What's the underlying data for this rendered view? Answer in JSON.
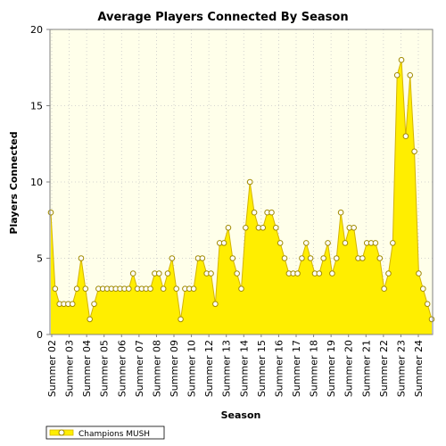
{
  "chart_data": {
    "type": "area",
    "title": "Average Players Connected By Season",
    "xlabel": "Season",
    "ylabel": "Players Connected",
    "ylim": [
      0,
      20
    ],
    "yticks": [
      0,
      5,
      10,
      15,
      20
    ],
    "grid": true,
    "legend_position": "bottom-left",
    "x_tick_labels": [
      "Summer 02",
      "Summer 03",
      "Summer 04",
      "Summer 05",
      "Summer 06",
      "Summer 07",
      "Summer 08",
      "Summer 09",
      "Summer 10",
      "Summer 12",
      "Summer 13",
      "Summer 14",
      "Summer 15",
      "Summer 16",
      "Summer 17",
      "Summer 18",
      "Summer 19",
      "Summer 20",
      "Summer 21",
      "Summer 22",
      "Summer 23",
      "Summer 24"
    ],
    "series": [
      {
        "name": "Champions MUSH",
        "color": "#ffee00",
        "values": [
          8,
          3,
          2,
          2,
          2,
          2,
          3,
          5,
          3,
          1,
          2,
          3,
          3,
          3,
          3,
          3,
          3,
          3,
          3,
          4,
          3,
          3,
          3,
          3,
          4,
          4,
          3,
          4,
          5,
          3,
          1,
          3,
          3,
          3,
          5,
          5,
          4,
          4,
          2,
          6,
          6,
          7,
          5,
          4,
          3,
          7,
          10,
          8,
          7,
          7,
          8,
          8,
          7,
          6,
          5,
          4,
          4,
          4,
          5,
          6,
          5,
          4,
          4,
          5,
          6,
          4,
          5,
          8,
          6,
          7,
          7,
          5,
          5,
          6,
          6,
          6,
          5,
          3,
          4,
          6,
          17,
          18,
          13,
          17,
          12,
          4,
          3,
          2,
          1
        ]
      }
    ]
  },
  "colors": {
    "plot_bg": "#ffffea",
    "area_fill": "#ffee00",
    "area_stroke": "#d4b400",
    "marker_fill": "#ffffff",
    "marker_stroke": "#a08a00",
    "grid": "#c8c8c8"
  }
}
